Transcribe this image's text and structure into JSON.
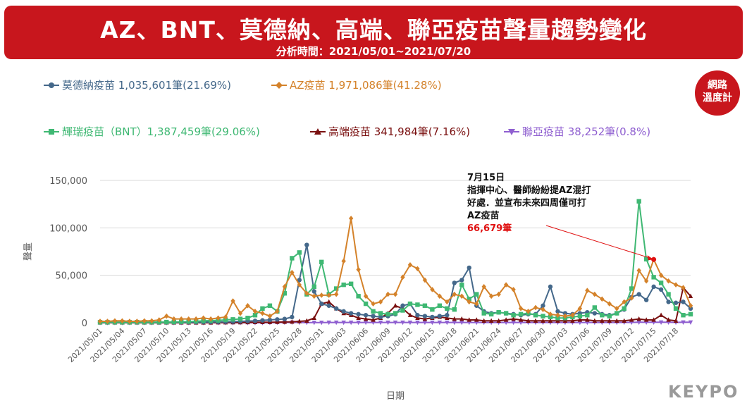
{
  "header": {
    "title": "AZ、BNT、莫德納、高端、聯亞疫苗聲量趨勢變化",
    "subtitle": "分析時間：2021/05/01~2021/07/20"
  },
  "badge": {
    "line1": "網路",
    "line2": "溫度計"
  },
  "logo": "KEYPO",
  "legend": [
    {
      "label": "莫德納疫苗 1,035,601筆(21.69%)",
      "color": "#44688a",
      "marker": "circle"
    },
    {
      "label": "AZ疫苗 1,971,086筆(41.28%)",
      "color": "#d4822a",
      "marker": "diamond"
    },
    {
      "label": "輝瑞疫苗（BNT）1,387,459筆(29.06%)",
      "color": "#3fb873",
      "marker": "square"
    },
    {
      "label": "高端疫苗 341,984筆(7.16%)",
      "color": "#7a1010",
      "marker": "triangle"
    },
    {
      "label": "聯亞疫苗 38,252筆(0.8%)",
      "color": "#8f5fd0",
      "marker": "triangle-down"
    }
  ],
  "annotation": {
    "date": "7月15日",
    "line1": "指揮中心、醫師紛紛提AZ混打",
    "line2": "好處．並宣布未來四周僅可打",
    "line3": "AZ疫苗",
    "value": "66,679筆",
    "value_color": "#e01010"
  },
  "chart_data": {
    "type": "line",
    "xlabel": "日期",
    "ylabel": "聲量",
    "ylim": [
      0,
      150000
    ],
    "yticks": [
      0,
      50000,
      100000,
      150000
    ],
    "ytick_labels": [
      "0",
      "50,000",
      "100,000",
      "150,000"
    ],
    "xtick_labels": [
      "2021/05/01",
      "2021/05/04",
      "2021/05/07",
      "2021/05/10",
      "2021/05/13",
      "2021/05/16",
      "2021/05/19",
      "2021/05/22",
      "2021/05/25",
      "2021/05/28",
      "2021/05/31",
      "2021/06/03",
      "2021/06/06",
      "2021/06/09",
      "2021/06/12",
      "2021/06/15",
      "2021/06/18",
      "2021/06/21",
      "2021/06/24",
      "2021/06/27",
      "2021/06/30",
      "2021/07/03",
      "2021/07/06",
      "2021/07/09",
      "2021/07/12",
      "2021/07/15",
      "2021/07/18"
    ],
    "grid": true,
    "legend_position": "top",
    "series": [
      {
        "name": "莫德納疫苗",
        "color": "#44688a",
        "marker": "circle",
        "values": [
          500,
          500,
          500,
          500,
          500,
          500,
          500,
          500,
          500,
          500,
          500,
          500,
          600,
          600,
          700,
          800,
          900,
          1000,
          1200,
          1500,
          1800,
          2000,
          2500,
          3000,
          3500,
          4000,
          6000,
          45000,
          82000,
          33000,
          20000,
          18000,
          15000,
          12000,
          10000,
          9000,
          8000,
          7000,
          6000,
          7000,
          9000,
          18000,
          20000,
          8000,
          7000,
          6000,
          7000,
          8000,
          42000,
          45000,
          58000,
          18000,
          12000,
          10000,
          11000,
          10000,
          9000,
          8000,
          9000,
          9000,
          18000,
          38000,
          12000,
          10000,
          9000,
          10000,
          11000,
          10000,
          9000,
          8000,
          10000,
          14000,
          27000,
          30000,
          24000,
          38000,
          35000,
          22000,
          21000,
          22000,
          15000
        ]
      },
      {
        "name": "AZ疫苗",
        "color": "#d4822a",
        "marker": "diamond",
        "values": [
          1500,
          1500,
          2000,
          2000,
          1500,
          1500,
          2000,
          2000,
          3000,
          7000,
          4000,
          4000,
          4000,
          4000,
          5000,
          4000,
          5000,
          6000,
          23000,
          10000,
          18000,
          12000,
          10000,
          7000,
          12000,
          38000,
          53000,
          40000,
          31000,
          28000,
          29000,
          29000,
          30000,
          65000,
          110000,
          56000,
          28000,
          20000,
          22000,
          30000,
          30000,
          48000,
          61000,
          57000,
          45000,
          35000,
          28000,
          22000,
          30000,
          28000,
          22000,
          20000,
          38000,
          28000,
          30000,
          40000,
          35000,
          15000,
          12000,
          16000,
          14000,
          9000,
          8000,
          7000,
          8000,
          15000,
          34000,
          30000,
          25000,
          20000,
          15000,
          22000,
          26000,
          55000,
          44000,
          66679,
          50000,
          44000,
          40000,
          37000,
          18000
        ]
      },
      {
        "name": "輝瑞疫苗（BNT）",
        "color": "#3fb873",
        "marker": "square",
        "values": [
          500,
          500,
          500,
          500,
          500,
          600,
          600,
          600,
          700,
          700,
          800,
          1000,
          1200,
          1500,
          2000,
          2200,
          2500,
          3000,
          3500,
          4000,
          5000,
          8000,
          15000,
          18000,
          12000,
          31000,
          68000,
          74000,
          30000,
          38000,
          64000,
          30000,
          36000,
          40000,
          41000,
          28000,
          20000,
          12000,
          10000,
          9000,
          10000,
          13000,
          20000,
          19000,
          18000,
          14000,
          18000,
          15000,
          14000,
          40000,
          25000,
          30000,
          10000,
          9000,
          11000,
          10000,
          8000,
          9000,
          10000,
          8000,
          7000,
          6000,
          5000,
          5000,
          6000,
          7000,
          8000,
          16000,
          8000,
          7000,
          10000,
          15000,
          36000,
          128000,
          67000,
          48000,
          42000,
          30000,
          15000,
          8000,
          9000
        ]
      },
      {
        "name": "高端疫苗",
        "color": "#7a1010",
        "marker": "triangle",
        "values": [
          100,
          100,
          100,
          100,
          100,
          100,
          100,
          100,
          100,
          100,
          100,
          100,
          100,
          100,
          100,
          100,
          200,
          200,
          300,
          300,
          400,
          500,
          500,
          600,
          700,
          800,
          1000,
          1500,
          2000,
          5000,
          20000,
          22000,
          15000,
          10000,
          8000,
          5000,
          4000,
          3000,
          5000,
          10000,
          18000,
          15000,
          8000,
          5000,
          4000,
          5000,
          6000,
          5000,
          4000,
          4000,
          3000,
          3000,
          2000,
          2000,
          2000,
          3000,
          4000,
          3000,
          2000,
          2000,
          2000,
          2000,
          2000,
          2000,
          2000,
          3000,
          3000,
          2000,
          2000,
          2000,
          2000,
          2000,
          3000,
          4000,
          3000,
          3000,
          8000,
          3000,
          2000,
          37000,
          28000
        ]
      },
      {
        "name": "聯亞疫苗",
        "color": "#8f5fd0",
        "marker": "triangle-down",
        "values": [
          0,
          0,
          0,
          0,
          0,
          0,
          0,
          0,
          0,
          0,
          0,
          0,
          0,
          0,
          0,
          0,
          0,
          0,
          0,
          0,
          0,
          0,
          0,
          100,
          200,
          300,
          400,
          300,
          200,
          200,
          200,
          300,
          300,
          300,
          300,
          300,
          300,
          300,
          300,
          300,
          300,
          300,
          300,
          300,
          300,
          300,
          300,
          300,
          300,
          300,
          300,
          300,
          300,
          300,
          300,
          300,
          300,
          300,
          300,
          300,
          300,
          300,
          300,
          300,
          300,
          300,
          300,
          300,
          300,
          300,
          300,
          400,
          400,
          500,
          500,
          500,
          500,
          500,
          400,
          500,
          500
        ]
      }
    ]
  }
}
